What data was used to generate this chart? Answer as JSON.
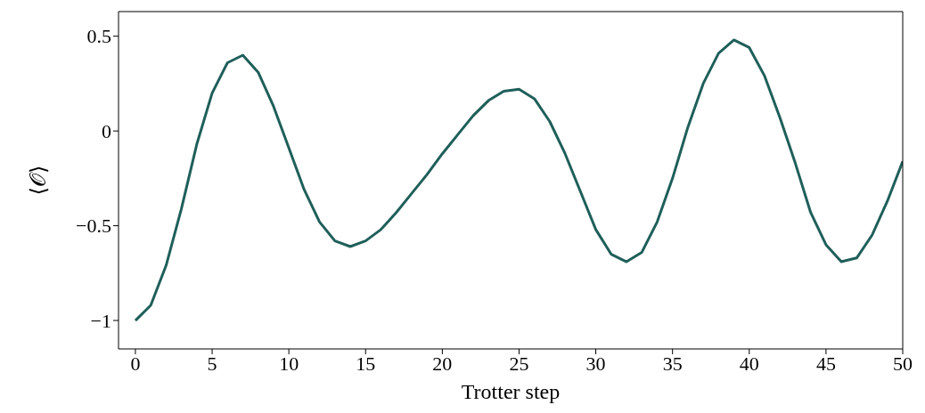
{
  "chart_data": {
    "type": "line",
    "xlabel": "Trotter step",
    "ylabel": "⟨𝒪⟩",
    "x": [
      0,
      1,
      2,
      3,
      4,
      5,
      6,
      7,
      8,
      9,
      10,
      11,
      12,
      13,
      14,
      15,
      16,
      17,
      18,
      19,
      20,
      21,
      22,
      23,
      24,
      25,
      26,
      27,
      28,
      29,
      30,
      31,
      32,
      33,
      34,
      35,
      36,
      37,
      38,
      39,
      40,
      41,
      42,
      43,
      44,
      45,
      46,
      47,
      48,
      49,
      50
    ],
    "series": [
      {
        "color": "#1f5f5a",
        "values": [
          -1.0,
          -0.92,
          -0.71,
          -0.41,
          -0.07,
          0.2,
          0.36,
          0.4,
          0.31,
          0.13,
          -0.09,
          -0.31,
          -0.48,
          -0.58,
          -0.61,
          -0.58,
          -0.52,
          -0.43,
          -0.33,
          -0.23,
          -0.12,
          -0.02,
          0.08,
          0.16,
          0.21,
          0.22,
          0.17,
          0.05,
          -0.12,
          -0.32,
          -0.52,
          -0.65,
          -0.69,
          -0.64,
          -0.48,
          -0.25,
          0.02,
          0.25,
          0.41,
          0.48,
          0.44,
          0.29,
          0.07,
          -0.17,
          -0.43,
          -0.6,
          -0.69,
          -0.67,
          -0.55,
          -0.37,
          -0.16
        ]
      }
    ],
    "xlim": [
      -1.1,
      50
    ],
    "xticks": [
      0,
      5,
      10,
      15,
      20,
      25,
      30,
      35,
      40,
      45,
      50
    ],
    "ylim": [
      -1.15,
      0.63
    ],
    "yticks": [
      {
        "value": -1,
        "label": "−1"
      },
      {
        "value": -0.5,
        "label": "−0.5"
      },
      0,
      0.5
    ],
    "grid": false,
    "legend": false,
    "marker": "none",
    "line_style": "solid"
  }
}
